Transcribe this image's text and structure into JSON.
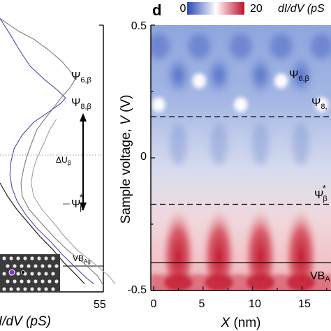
{
  "chart_data": [
    {
      "type": "line",
      "panel": "left",
      "xlabel": "dI/dV (pS)",
      "xtick_labels": [
        "55"
      ],
      "series": [
        {
          "color": "#7a7a7a",
          "points": [
            [
              0,
              0.52
            ],
            [
              10,
              0.47
            ],
            [
              18,
              0.44
            ],
            [
              26,
              0.4
            ],
            [
              33,
              0.36
            ],
            [
              38,
              0.32
            ],
            [
              40,
              0.29
            ],
            [
              37,
              0.26
            ],
            [
              32,
              0.22
            ],
            [
              28,
              0.18
            ],
            [
              24,
              0.14
            ],
            [
              20,
              0.1
            ],
            [
              17,
              0.05
            ],
            [
              14,
              0.0
            ],
            [
              12,
              -0.05
            ],
            [
              11,
              -0.1
            ],
            [
              12,
              -0.15
            ],
            [
              16,
              -0.2
            ],
            [
              22,
              -0.25
            ],
            [
              28,
              -0.3
            ],
            [
              35,
              -0.35
            ],
            [
              44,
              -0.4
            ],
            [
              52,
              -0.45
            ],
            [
              55,
              -0.48
            ]
          ]
        },
        {
          "color": "#4a4aa8",
          "points": [
            [
              0,
              0.52
            ],
            [
              5,
              0.46
            ],
            [
              10,
              0.4
            ],
            [
              16,
              0.34
            ],
            [
              24,
              0.29
            ],
            [
              31,
              0.25
            ],
            [
              35,
              0.22
            ],
            [
              32,
              0.2
            ],
            [
              26,
              0.17
            ],
            [
              18,
              0.13
            ],
            [
              12,
              0.08
            ],
            [
              8,
              0.03
            ],
            [
              6,
              -0.02
            ],
            [
              5,
              -0.07
            ],
            [
              6,
              -0.12
            ],
            [
              9,
              -0.17
            ],
            [
              14,
              -0.22
            ],
            [
              20,
              -0.27
            ],
            [
              27,
              -0.32
            ],
            [
              33,
              -0.37
            ],
            [
              40,
              -0.42
            ],
            [
              46,
              -0.46
            ],
            [
              50,
              -0.48
            ]
          ]
        },
        {
          "color": "#111111",
          "points": [
            [
              0,
              -0.1
            ],
            [
              4,
              -0.15
            ],
            [
              9,
              -0.2
            ],
            [
              15,
              -0.25
            ],
            [
              21,
              -0.3
            ],
            [
              28,
              -0.35
            ],
            [
              34,
              -0.4
            ],
            [
              41,
              -0.45
            ],
            [
              45,
              -0.48
            ]
          ]
        }
      ],
      "annotations": [
        "Ψ6,β",
        "Ψ8,β",
        "ΔUβ",
        "Ψβ*",
        "VBAg"
      ],
      "inset_marker_color": "#8a2be2"
    },
    {
      "type": "heatmap",
      "panel": "d",
      "xlabel": "X (nm)",
      "ylabel": "Sample voltage, V (V)",
      "xlim": [
        0,
        18.5
      ],
      "ylim": [
        -0.5,
        0.5
      ],
      "xticks": [
        0,
        5,
        10,
        15
      ],
      "yticks": [
        -0.5,
        0,
        0.5
      ],
      "colorbar": {
        "min": 0,
        "max": 20,
        "label": "dI/dV (pS",
        "colors": [
          "#2848b8",
          "#ffffff",
          "#c0102a"
        ]
      },
      "hlines": [
        {
          "value": 0.155,
          "style": "dashed"
        },
        {
          "value": -0.175,
          "style": "dashed"
        },
        {
          "value": -0.395,
          "style": "solid"
        }
      ],
      "annotations": [
        "Ψ6,β",
        "Ψ8,",
        "Ψβ*",
        "VBA"
      ],
      "hot_spots_x": [
        0.5,
        4.6,
        8.8,
        12.9,
        17.0
      ],
      "lobe_x": [
        2.5,
        6.6,
        10.8,
        14.9
      ]
    }
  ],
  "text": {
    "panel_label": "d",
    "cbar_min": "0",
    "cbar_max": "20",
    "cbar_label": "dI/dV (pS",
    "ytick_top": "0.5",
    "ytick_mid": "0",
    "ytick_bot": "-0.5",
    "xtick_0": "0",
    "xtick_5": "5",
    "xtick_10": "10",
    "xtick_15": "15",
    "xlabel_d": "X (nm)",
    "ylabel_d": "Sample voltage, V (V)",
    "xlabel_left": "I/dV (pS)",
    "xtick_left": "55",
    "psi_base": "Ψ",
    "psi6_sub": "6,β",
    "psi8_sub": "8,β",
    "psi8_sub_trunc": "8,",
    "delta_u": "ΔU",
    "delta_u_sub": "β",
    "star": "*",
    "beta": "β",
    "vb": "VB",
    "vb_sub": "Ag",
    "vb_trunc_sub": "A"
  }
}
